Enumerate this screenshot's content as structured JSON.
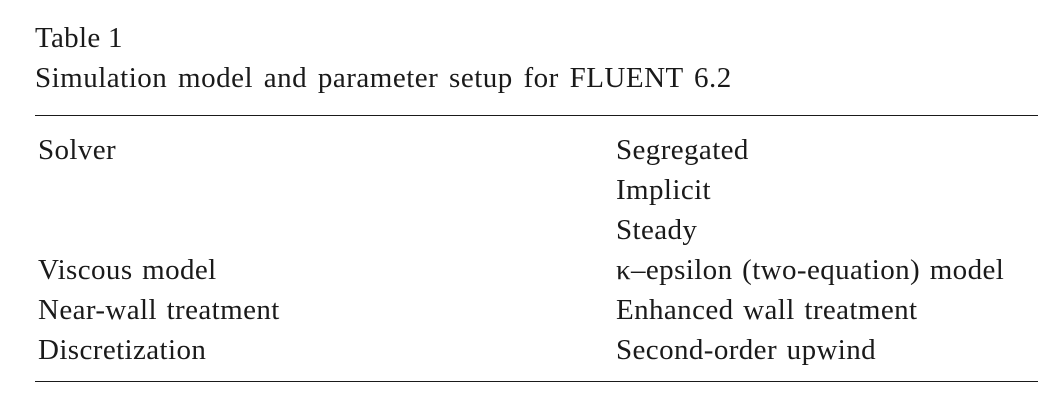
{
  "caption": {
    "label": "Table 1",
    "title": "Simulation model and parameter setup for FLUENT 6.2"
  },
  "table": {
    "rows": [
      {
        "parameter": "Solver",
        "value": "Segregated"
      },
      {
        "parameter": "",
        "value": "Implicit"
      },
      {
        "parameter": "",
        "value": "Steady"
      },
      {
        "parameter": "Viscous model",
        "value": "κ–epsilon (two-equation) model"
      },
      {
        "parameter": "Near-wall treatment",
        "value": "Enhanced wall treatment"
      },
      {
        "parameter": "Discretization",
        "value": "Second-order upwind"
      }
    ]
  }
}
